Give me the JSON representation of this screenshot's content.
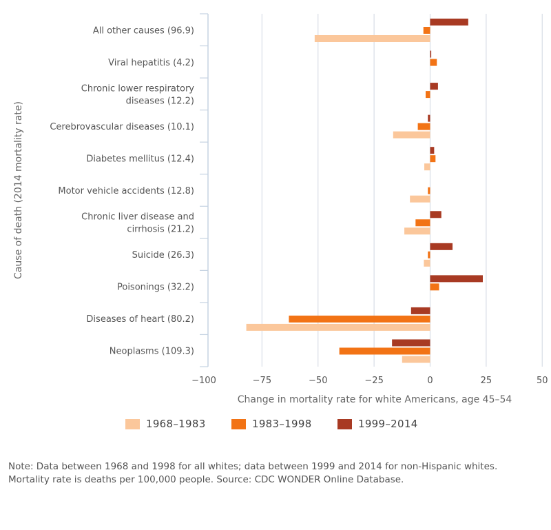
{
  "chart_data": {
    "type": "bar",
    "orientation": "horizontal",
    "title": "",
    "xlabel": "Change in mortality rate for white Americans, age 45–54",
    "ylabel": "Cause of death (2014 mortality rate)",
    "xlim": [
      -100,
      55
    ],
    "xticks": [
      -100,
      -75,
      -50,
      -25,
      0,
      25,
      50
    ],
    "xtick_labels": [
      "−100",
      "−75",
      "−50",
      "−25",
      "0",
      "25",
      "50"
    ],
    "grid": "vertical",
    "legend_position": "bottom",
    "categories": [
      [
        "All other causes (96.9)"
      ],
      [
        "Viral hepatitis (4.2)"
      ],
      [
        "Chronic lower respiratory",
        "diseases (12.2)"
      ],
      [
        "Cerebrovascular diseases (10.1)"
      ],
      [
        "Diabetes mellitus (12.4)"
      ],
      [
        "Motor vehicle accidents (12.8)"
      ],
      [
        "Chronic liver disease and",
        "cirrhosis (21.2)"
      ],
      [
        "Suicide (26.3)"
      ],
      [
        "Poisonings (32.2)"
      ],
      [
        "Diseases of heart (80.2)"
      ],
      [
        "Neoplasms (109.3)"
      ]
    ],
    "series": [
      {
        "name": "1999–2014",
        "color": "#a83a23",
        "values": [
          17,
          0.5,
          3.5,
          -1,
          1.8,
          0,
          5,
          10,
          23.5,
          -8.5,
          -17
        ]
      },
      {
        "name": "1983–1998",
        "color": "#f27315",
        "values": [
          -3,
          3,
          -2,
          -5.5,
          2.4,
          -1,
          -6.5,
          -1,
          4,
          -63,
          -40.5
        ]
      },
      {
        "name": "1968–1983",
        "color": "#fbc79b",
        "values": [
          -51.5,
          0,
          0,
          -16.5,
          -2.6,
          -9,
          -11.5,
          -2.8,
          0,
          -82,
          -12.5
        ]
      }
    ]
  },
  "legend": [
    {
      "label": "1968–1983",
      "color": "#fbc79b"
    },
    {
      "label": "1983–1998",
      "color": "#f27315"
    },
    {
      "label": "1999–2014",
      "color": "#a83a23"
    }
  ],
  "note": "Note: Data between 1968 and 1998 for all whites; data between 1999 and 2014 for non-Hispanic whites. Mortality rate is deaths per 100,000 people. Source: CDC WONDER Online Database."
}
